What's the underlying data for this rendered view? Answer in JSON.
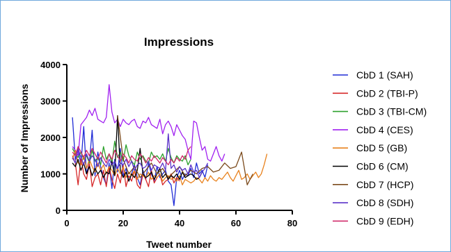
{
  "chart_data": {
    "type": "line",
    "title": "Impressions",
    "xlabel": "Tweet number",
    "ylabel": "Number of Impressions",
    "xlim": [
      0,
      80
    ],
    "ylim": [
      0,
      4000
    ],
    "xticks": [
      0,
      20,
      40,
      60,
      80
    ],
    "yticks": [
      0,
      1000,
      2000,
      3000,
      4000
    ],
    "grid": false,
    "legend_position": "right",
    "series": [
      {
        "name": "CbD 1 (SAH)",
        "color": "#1f2bd6",
        "x": [
          2,
          3,
          4,
          5,
          6,
          7,
          8,
          9,
          10,
          11,
          12,
          13,
          14,
          15,
          16,
          17,
          18,
          19,
          20,
          21,
          22,
          23,
          24,
          25,
          26,
          27,
          28,
          29,
          30,
          31,
          32,
          33,
          34,
          35,
          36,
          37,
          38,
          39,
          40,
          41,
          42,
          43,
          44,
          45,
          46,
          47,
          48,
          49,
          50
        ],
        "y": [
          2550,
          1400,
          1650,
          1250,
          2300,
          1000,
          1300,
          2200,
          950,
          1600,
          1200,
          900,
          700,
          1300,
          600,
          1400,
          1050,
          1700,
          950,
          1150,
          800,
          1000,
          1250,
          900,
          700,
          1100,
          850,
          1300,
          1000,
          800,
          1200,
          900,
          1000,
          1100,
          800,
          700,
          130,
          900,
          1100,
          850,
          1000,
          950,
          1150,
          900,
          1300,
          1000,
          1100,
          900,
          1250
        ]
      },
      {
        "name": "CbD 2 (TBI-P)",
        "color": "#d62728",
        "x": [
          2,
          3,
          4,
          5,
          6,
          7,
          8,
          9,
          10,
          11,
          12,
          13,
          14,
          15,
          16,
          17,
          18,
          19,
          20,
          21,
          22,
          23,
          24,
          25,
          26,
          27,
          28,
          29,
          30,
          31,
          32,
          33,
          34,
          35,
          36,
          37,
          38,
          39,
          40
        ],
        "y": [
          1500,
          1300,
          700,
          1450,
          1000,
          850,
          1300,
          650,
          900,
          1000,
          700,
          1100,
          650,
          1200,
          850,
          600,
          1000,
          750,
          1250,
          650,
          950,
          800,
          1100,
          700,
          600,
          1000,
          850,
          650,
          1100,
          750,
          900,
          1000,
          700,
          800,
          850,
          1000,
          750,
          900,
          800
        ]
      },
      {
        "name": "CbD 3 (TBI-CM)",
        "color": "#2ca02c",
        "x": [
          2,
          3,
          4,
          5,
          6,
          7,
          8,
          9,
          10,
          11,
          12,
          13,
          14,
          15,
          16,
          17,
          18,
          19,
          20,
          21,
          22,
          23,
          24,
          25,
          26,
          27,
          28,
          29,
          30,
          31,
          32,
          33,
          34,
          35,
          36,
          37,
          38,
          39,
          40,
          41,
          42,
          43,
          44
        ],
        "y": [
          1700,
          1550,
          1450,
          1600,
          1400,
          1500,
          1300,
          1650,
          1350,
          1450,
          1250,
          1750,
          1400,
          1550,
          1300,
          1900,
          1450,
          1600,
          1350,
          1800,
          1500,
          1350,
          1250,
          1600,
          1400,
          1500,
          1350,
          1300,
          1600,
          1450,
          1500,
          1400,
          1550,
          1350,
          1700,
          1450,
          1300,
          1500,
          1400,
          1350,
          1500,
          1250,
          1400
        ]
      },
      {
        "name": "CbD 4 (CES)",
        "color": "#a020f0",
        "x": [
          2,
          3,
          4,
          5,
          6,
          7,
          8,
          9,
          10,
          11,
          12,
          13,
          14,
          15,
          16,
          17,
          18,
          19,
          20,
          21,
          22,
          23,
          24,
          25,
          26,
          27,
          28,
          29,
          30,
          31,
          32,
          33,
          34,
          35,
          36,
          37,
          38,
          39,
          40,
          41,
          42,
          43,
          44,
          45,
          46,
          47,
          48,
          49,
          50,
          51,
          52,
          53,
          54,
          55,
          56
        ],
        "y": [
          1750,
          1650,
          1500,
          2350,
          2450,
          2550,
          2750,
          2600,
          2800,
          2500,
          2450,
          2400,
          2550,
          3450,
          2700,
          2400,
          2500,
          2300,
          2500,
          2400,
          2350,
          2450,
          2500,
          2300,
          2250,
          2450,
          2400,
          2550,
          2350,
          2300,
          2250,
          2500,
          2100,
          2350,
          2450,
          2300,
          2050,
          2350,
          2200,
          2050,
          1950,
          1650,
          1400,
          2450,
          2400,
          2000,
          1650,
          1750,
          1400,
          1350,
          1550,
          1750,
          1500,
          1350,
          1550
        ]
      },
      {
        "name": "CbD 5 (GB)",
        "color": "#e8821e",
        "x": [
          2,
          3,
          4,
          5,
          6,
          7,
          8,
          9,
          10,
          11,
          12,
          13,
          14,
          15,
          16,
          17,
          18,
          19,
          20,
          21,
          22,
          23,
          24,
          25,
          26,
          27,
          28,
          29,
          30,
          31,
          32,
          33,
          34,
          35,
          36,
          37,
          38,
          39,
          40,
          41,
          42,
          43,
          44,
          45,
          46,
          47,
          48,
          49,
          50,
          51,
          52,
          53,
          54,
          55,
          56,
          57,
          58,
          59,
          60,
          61,
          62,
          63,
          64,
          65,
          66,
          67,
          68,
          69,
          70,
          71
        ],
        "y": [
          1400,
          1650,
          1300,
          1250,
          1500,
          1150,
          1400,
          1200,
          1050,
          1300,
          1100,
          1250,
          1000,
          1200,
          1100,
          950,
          1150,
          1000,
          1200,
          900,
          1050,
          950,
          1100,
          850,
          1000,
          950,
          900,
          1050,
          850,
          950,
          900,
          1000,
          800,
          900,
          950,
          850,
          900,
          800,
          950,
          700,
          850,
          800,
          750,
          800,
          900,
          850,
          750,
          900,
          800,
          950,
          850,
          800,
          900,
          850,
          950,
          1050,
          900,
          800,
          950,
          1100,
          850,
          900,
          1000,
          850,
          950,
          1050,
          900,
          1000,
          1250,
          1550
        ]
      },
      {
        "name": "CbD 6 (CM)",
        "color": "#000000",
        "x": [
          2,
          3,
          4,
          5,
          6,
          7,
          8,
          9,
          10,
          11,
          12,
          13,
          14,
          15,
          16,
          17,
          18,
          19,
          20,
          21,
          22,
          23,
          24,
          25,
          26,
          27,
          28,
          29,
          30,
          31,
          32,
          33,
          34,
          35,
          36,
          37,
          38,
          39,
          40,
          41,
          42,
          43,
          44,
          45,
          46,
          47,
          48
        ],
        "y": [
          1300,
          1200,
          1400,
          1100,
          1300,
          1000,
          1200,
          950,
          1150,
          1000,
          1100,
          900,
          1050,
          1000,
          1350,
          950,
          2600,
          1100,
          900,
          1050,
          800,
          1000,
          900,
          1100,
          1700,
          1000,
          900,
          950,
          1050,
          850,
          1000,
          1150,
          900,
          1000,
          850,
          950,
          900,
          1000,
          850,
          1050,
          900,
          950,
          1000,
          950,
          850,
          900,
          1050
        ]
      },
      {
        "name": "CbD 7 (HCP)",
        "color": "#7b4a1c",
        "x": [
          18,
          20,
          22,
          24,
          26,
          28,
          30,
          32,
          34,
          36,
          38,
          40,
          42,
          44,
          46,
          48,
          50,
          52,
          54,
          56,
          58,
          60,
          62,
          64,
          66
        ],
        "y": [
          2600,
          1400,
          1000,
          1200,
          900,
          1100,
          1300,
          1000,
          1150,
          900,
          1050,
          1200,
          950,
          1100,
          1000,
          1150,
          1200,
          1050,
          1100,
          1300,
          1150,
          1200,
          1600,
          700,
          1000
        ]
      },
      {
        "name": "CbD 8 (SDH)",
        "color": "#5a32c8",
        "x": [
          2,
          3,
          4,
          5,
          6,
          7,
          8,
          9,
          10,
          11,
          12,
          13,
          14,
          15,
          16,
          17,
          18,
          19,
          20,
          21,
          22,
          23,
          24,
          25,
          26,
          27,
          28,
          29,
          30,
          31,
          32,
          33,
          34,
          35,
          36,
          37,
          38,
          39,
          40,
          41,
          42,
          43,
          44,
          45,
          46,
          47,
          48,
          49,
          50
        ],
        "y": [
          1450,
          1300,
          1700,
          1450,
          1250,
          1550,
          1350,
          1500,
          1400,
          1200,
          1450,
          1300,
          1200,
          1400,
          1250,
          1350,
          1150,
          1300,
          1250,
          1400,
          1200,
          1350,
          1100,
          1250,
          1300,
          1150,
          1200,
          1350,
          1100,
          1250,
          1200,
          1150,
          1300,
          1100,
          2100,
          1150,
          1250,
          1050,
          1200,
          1100,
          1150,
          1000,
          1250,
          1050,
          1100,
          900,
          1050,
          1150,
          1300
        ]
      },
      {
        "name": "CbD 9 (EDH)",
        "color": "#d02a6a",
        "x": [
          2,
          3,
          4,
          5,
          6,
          7,
          8,
          9,
          10,
          11,
          12,
          13,
          14,
          15,
          16,
          17,
          18,
          19,
          20,
          21,
          22,
          23,
          24,
          25,
          26,
          27,
          28,
          29,
          30,
          31,
          32,
          33,
          34,
          35,
          36,
          37,
          38,
          39,
          40,
          41,
          42,
          43,
          44
        ],
        "y": [
          1600,
          1500,
          1750,
          1600,
          1450,
          1650,
          1500,
          1700,
          1550,
          1400,
          1600,
          1450,
          1300,
          1550,
          1400,
          1650,
          1500,
          1350,
          1550,
          1450,
          1300,
          1500,
          1400,
          1350,
          1550,
          1450,
          1300,
          1450,
          1350,
          1500,
          1400,
          1300,
          1450,
          1350,
          1250,
          1400,
          1300,
          1450,
          1350,
          1500,
          1400,
          1650,
          1750
        ]
      }
    ]
  }
}
